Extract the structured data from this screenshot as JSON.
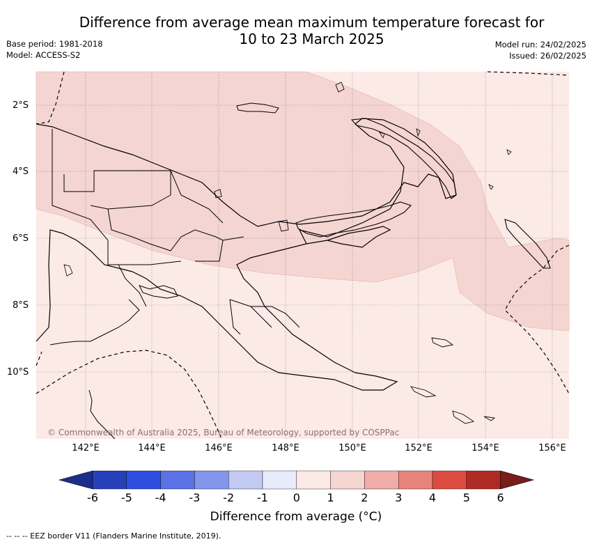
{
  "title": {
    "line1": "Difference from average mean maximum temperature forecast for",
    "line2": "10 to 23 March 2025"
  },
  "meta": {
    "base_period": "Base period: 1981-2018",
    "model": "Model: ACCESS-S2",
    "model_run": "Model run: 24/02/2025",
    "issued": "Issued: 26/02/2025"
  },
  "map": {
    "region": "Papua New Guinea",
    "lat_labels": [
      "2°S",
      "4°S",
      "6°S",
      "8°S",
      "10°S"
    ],
    "lon_labels": [
      "142°E",
      "144°E",
      "146°E",
      "148°E",
      "150°E",
      "152°E",
      "154°E",
      "156°E"
    ],
    "colors": {
      "anomaly_0_to_1": "#fceae7",
      "anomaly_1_to_2": "#f5d5d2"
    },
    "credit": "© Commonwealth of Australia 2025, Bureau of Meteorology, supported by COSPPac"
  },
  "colorbar": {
    "ticks": [
      "-6",
      "-5",
      "-4",
      "-3",
      "-2",
      "-1",
      "0",
      "1",
      "2",
      "3",
      "4",
      "5",
      "6"
    ],
    "colors": [
      "#1c2e8c",
      "#2540b8",
      "#2f4ee0",
      "#5a72e6",
      "#8496ec",
      "#c2c9f3",
      "#e8ebfa",
      "#fceae7",
      "#f5d5d2",
      "#f0aca6",
      "#e8847b",
      "#de4b40",
      "#b02a24",
      "#7a1c1a"
    ],
    "label": "Difference from average (°C)"
  },
  "footer": {
    "eez_note": "-- --  -- EEZ border V11 (Flanders Marine Institute, 2019)."
  }
}
